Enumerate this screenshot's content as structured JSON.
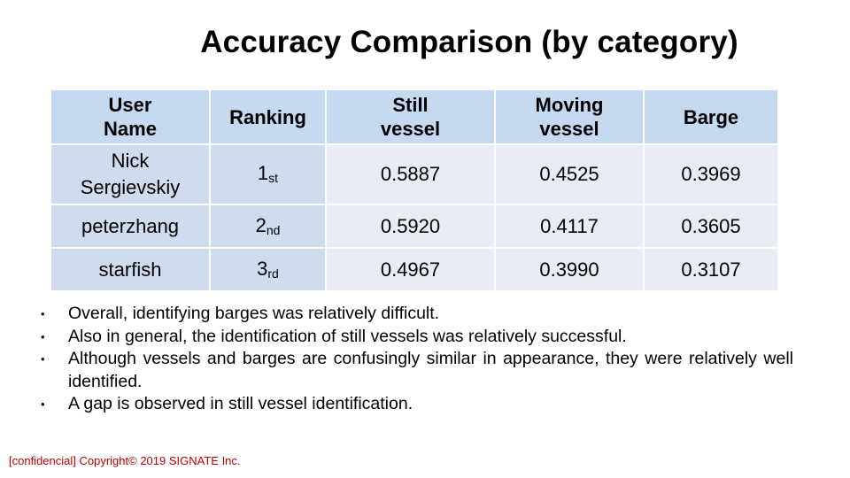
{
  "title": "Accuracy Comparison (by category)",
  "table": {
    "headers": [
      "User Name",
      "Ranking",
      "Still vessel",
      "Moving vessel",
      "Barge"
    ],
    "rows": [
      {
        "user": "Nick Sergievskiy",
        "rank_num": "1",
        "rank_suffix": "st",
        "still": "0.5887",
        "moving": "0.4525",
        "barge": "0.3969"
      },
      {
        "user": "peterzhang",
        "rank_num": "2",
        "rank_suffix": "nd",
        "still": "0.5920",
        "moving": "0.4117",
        "barge": "0.3605"
      },
      {
        "user": "starfish",
        "rank_num": "3",
        "rank_suffix": "rd",
        "still": "0.4967",
        "moving": "0.3990",
        "barge": "0.3107"
      }
    ]
  },
  "bullet_char": "•",
  "notes": [
    "Overall, identifying barges was relatively difficult.",
    "Also in general, the identification of still vessels was relatively successful.",
    "Although vessels and barges are confusingly similar in appearance, they were relatively well identified.",
    "A gap is observed in still vessel identification."
  ],
  "footer": "[confidencial] Copyright© 2019 SIGNATE Inc.",
  "colors": {
    "header_bg": "#c5d9f0",
    "label_bg": "#cfdcee",
    "value_bg": "#e9ecf5",
    "footer_text": "#c00000"
  }
}
